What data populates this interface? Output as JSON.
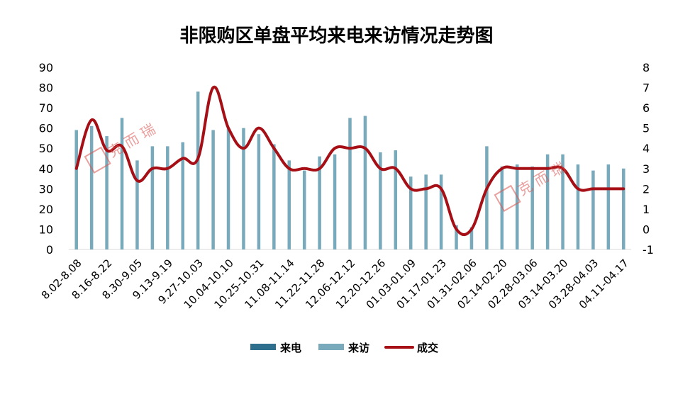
{
  "chart_data": {
    "type": "bar",
    "title": "非限购区单盘平均来电来访情况走势图",
    "y_left": {
      "ylim": [
        0,
        90
      ],
      "ticks": [
        0,
        10,
        20,
        30,
        40,
        50,
        60,
        70,
        80,
        90
      ]
    },
    "y_right": {
      "ylim": [
        -1,
        8
      ],
      "ticks": [
        -1,
        0,
        1,
        2,
        3,
        4,
        5,
        6,
        7,
        8
      ]
    },
    "x_tick_labels": [
      "8.02-8.08",
      "8.16-8.22",
      "8.30-9.05",
      "9.13-9.19",
      "9.27-10.03",
      "10.04-10.10",
      "10.25-10.31",
      "11.08-11.14",
      "11.22-11.28",
      "12.06-12.12",
      "12.20-12.26",
      "01.03-01.09",
      "01.17-01.23",
      "01.31-02.06",
      "02.14-02.20",
      "02.28-03.06",
      "03.14-03.20",
      "03.28-04.03",
      "04.11-04.17"
    ],
    "bar_count": 37,
    "series": [
      {
        "name": "来电",
        "kind": "bar",
        "axis": "left",
        "color": "#2e6f8e",
        "values": [
          0,
          0,
          0,
          0,
          0,
          0,
          0,
          0,
          0,
          0,
          0,
          0,
          0,
          0,
          0,
          0,
          0,
          0,
          0,
          0,
          0,
          0,
          0,
          0,
          0,
          0,
          0,
          0,
          0,
          0,
          0,
          0,
          0,
          0,
          0,
          0,
          0
        ]
      },
      {
        "name": "来访",
        "kind": "bar",
        "axis": "left",
        "color": "#79aabb",
        "values": [
          59,
          61,
          56,
          65,
          44,
          51,
          51,
          53,
          78,
          59,
          60,
          60,
          57,
          52,
          44,
          39,
          46,
          47,
          65,
          66,
          48,
          49,
          36,
          37,
          37,
          12,
          11,
          51,
          41,
          42,
          41,
          47,
          47,
          42,
          39,
          42,
          40
        ]
      },
      {
        "name": "成交",
        "kind": "line",
        "axis": "right",
        "color": "#a50f15",
        "values": [
          3,
          5.4,
          3.9,
          4.1,
          2.4,
          3,
          3,
          3.5,
          3.5,
          7,
          5,
          4,
          5,
          4,
          3,
          3,
          3,
          4,
          4,
          4,
          3,
          3,
          2,
          2,
          2,
          0,
          0,
          2,
          3,
          3,
          3,
          3,
          3,
          2,
          2,
          2,
          2
        ]
      }
    ],
    "legend": {
      "placement": "bottom-center"
    },
    "watermark": "克 而 瑞",
    "grid": false
  }
}
